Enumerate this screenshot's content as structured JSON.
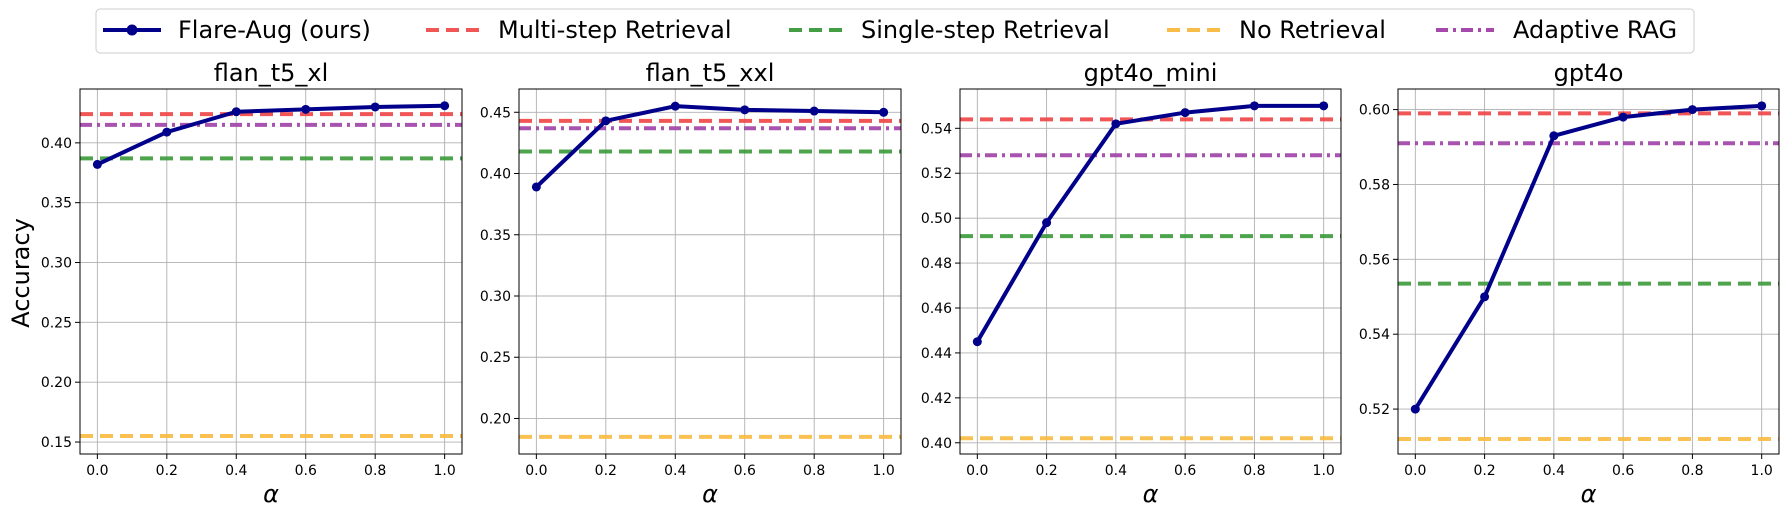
{
  "legend": {
    "placement": "top-center",
    "items": [
      {
        "label": "Flare-Aug (ours)",
        "color": "#00008b",
        "style": "solid-marker"
      },
      {
        "label": "Multi-step Retrieval",
        "color": "#ef4444",
        "style": "dashed"
      },
      {
        "label": "Single-step Retrieval",
        "color": "#3a9a3a",
        "style": "dashed"
      },
      {
        "label": "No Retrieval",
        "color": "#f8b93f",
        "style": "dashed"
      },
      {
        "label": "Adaptive RAG",
        "color": "#a040a8",
        "style": "dashdot"
      }
    ]
  },
  "shared_ylabel": "Accuracy",
  "chart_data": [
    {
      "type": "line",
      "title": "flan_t5_xl",
      "xlabel": "α",
      "ylabel": "Accuracy",
      "grid": true,
      "xlim": [
        -0.05,
        1.05
      ],
      "ylim": [
        0.14,
        0.445
      ],
      "xticks": [
        "0.0",
        "0.2",
        "0.4",
        "0.6",
        "0.8",
        "1.0"
      ],
      "yticks": [
        "0.15",
        "0.20",
        "0.25",
        "0.30",
        "0.35",
        "0.40"
      ],
      "x": [
        0.0,
        0.2,
        0.4,
        0.6,
        0.8,
        1.0
      ],
      "series": [
        {
          "name": "Flare-Aug (ours)",
          "values": [
            0.382,
            0.409,
            0.426,
            0.428,
            0.43,
            0.431
          ]
        }
      ],
      "baselines": [
        {
          "name": "Multi-step Retrieval",
          "value": 0.424
        },
        {
          "name": "Single-step Retrieval",
          "value": 0.387
        },
        {
          "name": "No Retrieval",
          "value": 0.155
        },
        {
          "name": "Adaptive RAG",
          "value": 0.415
        }
      ]
    },
    {
      "type": "line",
      "title": "flan_t5_xxl",
      "xlabel": "α",
      "ylabel": "",
      "grid": true,
      "xlim": [
        -0.05,
        1.05
      ],
      "ylim": [
        0.171,
        0.469
      ],
      "xticks": [
        "0.0",
        "0.2",
        "0.4",
        "0.6",
        "0.8",
        "1.0"
      ],
      "yticks": [
        "0.20",
        "0.25",
        "0.30",
        "0.35",
        "0.40",
        "0.45"
      ],
      "x": [
        0.0,
        0.2,
        0.4,
        0.6,
        0.8,
        1.0
      ],
      "series": [
        {
          "name": "Flare-Aug (ours)",
          "values": [
            0.389,
            0.443,
            0.455,
            0.452,
            0.451,
            0.45
          ]
        }
      ],
      "baselines": [
        {
          "name": "Multi-step Retrieval",
          "value": 0.443
        },
        {
          "name": "Single-step Retrieval",
          "value": 0.418
        },
        {
          "name": "No Retrieval",
          "value": 0.185
        },
        {
          "name": "Adaptive RAG",
          "value": 0.437
        }
      ]
    },
    {
      "type": "line",
      "title": "gpt4o_mini",
      "xlabel": "α",
      "ylabel": "",
      "grid": true,
      "xlim": [
        -0.05,
        1.05
      ],
      "ylim": [
        0.395,
        0.5575
      ],
      "xticks": [
        "0.0",
        "0.2",
        "0.4",
        "0.6",
        "0.8",
        "1.0"
      ],
      "yticks": [
        "0.40",
        "0.42",
        "0.44",
        "0.46",
        "0.48",
        "0.50",
        "0.52",
        "0.54"
      ],
      "x": [
        0.0,
        0.2,
        0.4,
        0.6,
        0.8,
        1.0
      ],
      "series": [
        {
          "name": "Flare-Aug (ours)",
          "values": [
            0.445,
            0.498,
            0.542,
            0.547,
            0.55,
            0.55
          ]
        }
      ],
      "baselines": [
        {
          "name": "Multi-step Retrieval",
          "value": 0.544
        },
        {
          "name": "Single-step Retrieval",
          "value": 0.492
        },
        {
          "name": "No Retrieval",
          "value": 0.402
        },
        {
          "name": "Adaptive RAG",
          "value": 0.528
        }
      ]
    },
    {
      "type": "line",
      "title": "gpt4o",
      "xlabel": "α",
      "ylabel": "",
      "grid": true,
      "xlim": [
        -0.05,
        1.05
      ],
      "ylim": [
        0.508,
        0.6055
      ],
      "xticks": [
        "0.0",
        "0.2",
        "0.4",
        "0.6",
        "0.8",
        "1.0"
      ],
      "yticks": [
        "0.52",
        "0.54",
        "0.56",
        "0.58",
        "0.60"
      ],
      "x": [
        0.0,
        0.2,
        0.4,
        0.6,
        0.8,
        1.0
      ],
      "series": [
        {
          "name": "Flare-Aug (ours)",
          "values": [
            0.52,
            0.55,
            0.593,
            0.598,
            0.6,
            0.601
          ]
        }
      ],
      "baselines": [
        {
          "name": "Multi-step Retrieval",
          "value": 0.599
        },
        {
          "name": "Single-step Retrieval",
          "value": 0.5535
        },
        {
          "name": "No Retrieval",
          "value": 0.512
        },
        {
          "name": "Adaptive RAG",
          "value": 0.591
        }
      ]
    }
  ]
}
